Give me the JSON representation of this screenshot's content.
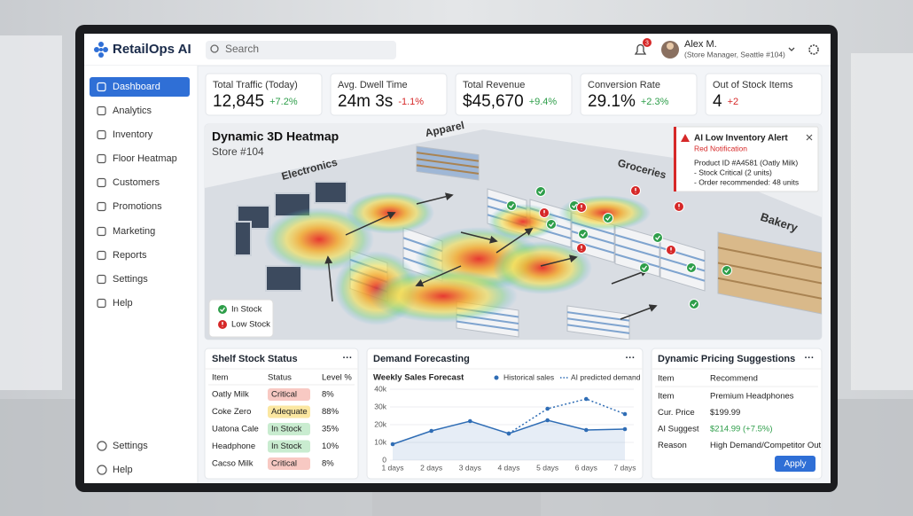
{
  "app": {
    "name": "RetailOps AI"
  },
  "search": {
    "placeholder": "Search"
  },
  "user": {
    "notifications": "3",
    "name": "Alex M.",
    "role": "(Store Manager, Seattle #104)"
  },
  "sidebar": {
    "items": [
      "Dashboard",
      "Analytics",
      "Inventory",
      "Floor Heatmap",
      "Customers",
      "Promotions",
      "Marketing",
      "Reports",
      "Settings",
      "Help"
    ],
    "footer": [
      "Settings",
      "Help"
    ]
  },
  "kpis": [
    {
      "label": "Total Traffic (Today)",
      "value": "12,845",
      "delta": "+7.2%"
    },
    {
      "label": "Avg. Dwell Time",
      "value": "24m 3s",
      "delta": "-1.1%"
    },
    {
      "label": "Total Revenue",
      "value": "$45,670",
      "delta": "+9.4%"
    },
    {
      "label": "Conversion Rate",
      "value": "29.1%",
      "delta": "+2.3%"
    },
    {
      "label": "Out of Stock Items",
      "value": "4",
      "delta": "+2"
    }
  ],
  "heatmap": {
    "title": "Dynamic 3D Heatmap",
    "subtitle": "Store #104",
    "zones": [
      "Electronics",
      "Apparel",
      "Groceries",
      "Bakery"
    ],
    "alert": {
      "title": "AI Low Inventory Alert",
      "subtitle": "Red Notification",
      "lines": [
        "Product ID #A4581 (Oatly Milk)",
        "- Stock Critical (2 units)",
        "- Order recommended: 48 units"
      ]
    },
    "legend": [
      "In Stock",
      "Low Stock"
    ]
  },
  "shelf_stock": {
    "title": "Shelf Stock Status",
    "menu": "···",
    "columns": [
      "Item",
      "Status",
      "Level %"
    ],
    "rows": [
      [
        "Oatly Milk",
        "Critical",
        "8%"
      ],
      [
        "Coke Zero",
        "Adequate",
        "88%"
      ],
      [
        "Uatona Cale",
        "In Stock",
        "35%"
      ],
      [
        "Headphone",
        "In Stock",
        "10%"
      ],
      [
        "Cacso Milk",
        "Critical",
        "8%"
      ]
    ]
  },
  "forecast": {
    "title": "Demand Forecasting",
    "menu": "···",
    "chart_data": {
      "type": "line",
      "title": "Weekly Sales Forecast",
      "categories": [
        "1 days",
        "2 days",
        "3 days",
        "4 days",
        "5 days",
        "6 days",
        "7 days"
      ],
      "series": [
        {
          "name": "Historical sales",
          "color": "#2f6db5",
          "values": [
            9000,
            16500,
            22000,
            15000,
            22500,
            17000,
            17500
          ]
        },
        {
          "name": "AI predicted demand",
          "color": "#2f6db5",
          "dashed": true,
          "values": [
            null,
            null,
            null,
            15000,
            29000,
            34500,
            26000
          ]
        }
      ],
      "ylim": [
        0,
        40000
      ],
      "yticks": [
        0,
        {
          "value": 10000,
          "label": "10k"
        },
        {
          "value": 20000,
          "label": "20k"
        },
        {
          "value": 30000,
          "label": "30k"
        },
        {
          "value": 40000,
          "label": "40k"
        }
      ],
      "grid": true
    }
  },
  "pricing": {
    "title": "Dynamic Pricing Suggestions",
    "menu": "···",
    "columns": [
      "Item",
      "Recommend"
    ],
    "rows": [
      [
        "Item",
        "Premium Headphones"
      ],
      [
        "Cur. Price",
        "$199.99"
      ],
      [
        "AI Suggest",
        "$214.99 (+7.5%)"
      ],
      [
        "Reason",
        "High Demand/Competitor Out"
      ]
    ],
    "button": "Apply"
  }
}
